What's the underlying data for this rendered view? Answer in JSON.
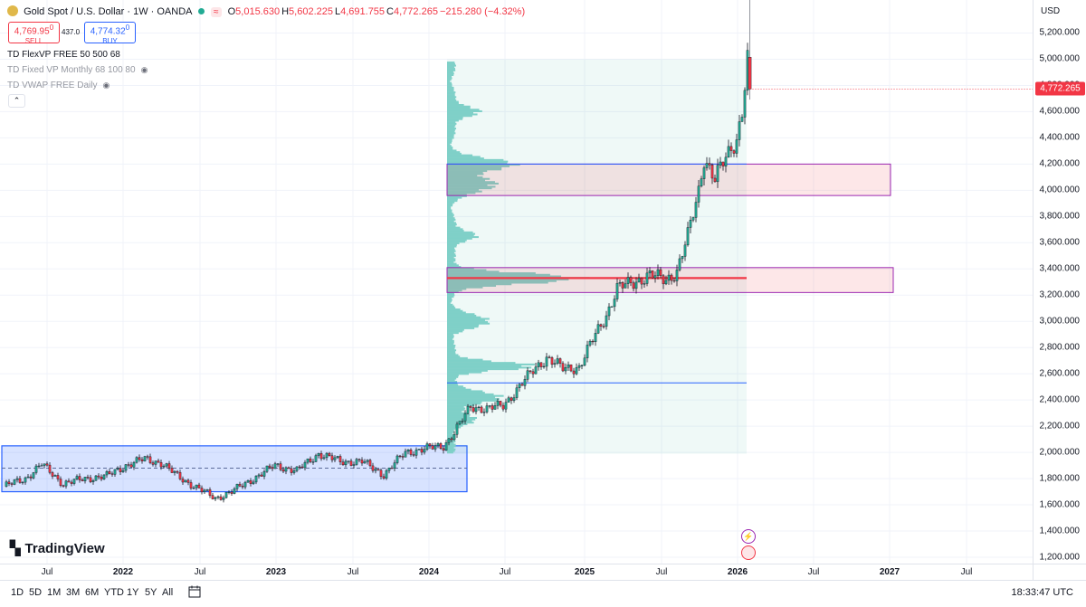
{
  "header": {
    "title": "Gold Spot / U.S. Dollar · 1W · OANDA",
    "market_pill": "≈",
    "ohlc": [
      {
        "k": "O",
        "v": "5,015.630"
      },
      {
        "k": "H",
        "v": "5,602.225"
      },
      {
        "k": "L",
        "v": "4,691.755"
      },
      {
        "k": "C",
        "v": "4,772.265"
      },
      {
        "k": "",
        "v": "−215.280 (−4.32%)"
      }
    ]
  },
  "trade": {
    "sell_price": "4,769.95",
    "sell_sup": "0",
    "sell_label": "SELL",
    "spread": "437.0",
    "buy_price": "4,774.32",
    "buy_sup": "0",
    "buy_label": "BUY"
  },
  "indicators": [
    {
      "label": "TD FlexVP FREE 50 500 68",
      "visible": true
    },
    {
      "label": "TD Fixed VP Monthly 68 100 80",
      "visible": false
    },
    {
      "label": "TD VWAP FREE Daily",
      "visible": false
    }
  ],
  "price_axis": {
    "currency": "USD",
    "ticks": [
      "1,200.000",
      "1,400.000",
      "1,600.000",
      "1,800.000",
      "2,000.000",
      "2,200.000",
      "2,400.000",
      "2,600.000",
      "2,800.000",
      "3,000.000",
      "3,200.000",
      "3,400.000",
      "3,600.000",
      "3,800.000",
      "4,000.000",
      "4,200.000",
      "4,400.000",
      "4,600.000",
      "4,800.000",
      "5,000.000",
      "5,200.000"
    ],
    "last_price": "4,772.265"
  },
  "time_axis": {
    "ticks": [
      {
        "label": "Jul",
        "year": false
      },
      {
        "label": "2022",
        "year": true
      },
      {
        "label": "Jul",
        "year": false
      },
      {
        "label": "2023",
        "year": true
      },
      {
        "label": "Jul",
        "year": false
      },
      {
        "label": "2024",
        "year": true
      },
      {
        "label": "Jul",
        "year": false
      },
      {
        "label": "2025",
        "year": true
      },
      {
        "label": "Jul",
        "year": false
      },
      {
        "label": "2026",
        "year": true
      },
      {
        "label": "Jul",
        "year": false
      },
      {
        "label": "2027",
        "year": true
      },
      {
        "label": "Jul",
        "year": false
      }
    ]
  },
  "bottom_bar": {
    "timeframes": [
      "1D",
      "5D",
      "1M",
      "3M",
      "6M",
      "YTD",
      "1Y",
      "5Y",
      "All"
    ],
    "clock": "18:33:47 UTC"
  },
  "branding": {
    "logo_text": "TradingView"
  },
  "colors": {
    "up": "#22ab94",
    "down": "#f23645",
    "range_box": "#2962ff",
    "volume_profile": "#7fd0c8",
    "zone_fill": "#fde6e8",
    "zone_border": "#9c27b0",
    "poc": "#f23645"
  },
  "chart_data": {
    "type": "candlestick",
    "symbol": "XAUUSD",
    "interval": "1W",
    "ylim": [
      1200,
      5300
    ],
    "key_levels": {
      "consolidation_range": [
        1700,
        2050
      ],
      "consolidation_mid": 1880,
      "supply_zone_upper": [
        3960,
        4200
      ],
      "supply_zone_lower": [
        3220,
        3410
      ],
      "poc": 3330,
      "value_area_low": 2530
    },
    "anchors": [
      {
        "t": 0,
        "price": 1740
      },
      {
        "t": 8,
        "price": 1800
      },
      {
        "t": 14,
        "price": 1910
      },
      {
        "t": 22,
        "price": 1760
      },
      {
        "t": 30,
        "price": 1800
      },
      {
        "t": 38,
        "price": 1820
      },
      {
        "t": 45,
        "price": 1900
      },
      {
        "t": 52,
        "price": 1950
      },
      {
        "t": 58,
        "price": 1920
      },
      {
        "t": 64,
        "price": 1820
      },
      {
        "t": 72,
        "price": 1720
      },
      {
        "t": 78,
        "price": 1650
      },
      {
        "t": 84,
        "price": 1700
      },
      {
        "t": 92,
        "price": 1800
      },
      {
        "t": 100,
        "price": 1900
      },
      {
        "t": 108,
        "price": 1860
      },
      {
        "t": 116,
        "price": 1990
      },
      {
        "t": 124,
        "price": 1930
      },
      {
        "t": 132,
        "price": 1930
      },
      {
        "t": 140,
        "price": 1830
      },
      {
        "t": 148,
        "price": 2000
      },
      {
        "t": 156,
        "price": 2030
      },
      {
        "t": 162,
        "price": 2050
      },
      {
        "t": 166,
        "price": 2150
      },
      {
        "t": 172,
        "price": 2350
      },
      {
        "t": 178,
        "price": 2330
      },
      {
        "t": 184,
        "price": 2360
      },
      {
        "t": 190,
        "price": 2500
      },
      {
        "t": 196,
        "price": 2650
      },
      {
        "t": 200,
        "price": 2720
      },
      {
        "t": 206,
        "price": 2640
      },
      {
        "t": 212,
        "price": 2650
      },
      {
        "t": 218,
        "price": 2900
      },
      {
        "t": 222,
        "price": 3050
      },
      {
        "t": 226,
        "price": 3250
      },
      {
        "t": 232,
        "price": 3300
      },
      {
        "t": 238,
        "price": 3350
      },
      {
        "t": 244,
        "price": 3320
      },
      {
        "t": 248,
        "price": 3380
      },
      {
        "t": 252,
        "price": 3650
      },
      {
        "t": 256,
        "price": 4000
      },
      {
        "t": 258,
        "price": 4250
      },
      {
        "t": 262,
        "price": 4080
      },
      {
        "t": 266,
        "price": 4250
      },
      {
        "t": 270,
        "price": 4400
      },
      {
        "t": 272,
        "price": 4600
      },
      {
        "t": 274,
        "price": 5000
      },
      {
        "t": 275,
        "price": 4772
      }
    ],
    "last_candle": {
      "open": 5015.63,
      "high": 5602.225,
      "low": 4691.755,
      "close": 4772.265
    }
  }
}
